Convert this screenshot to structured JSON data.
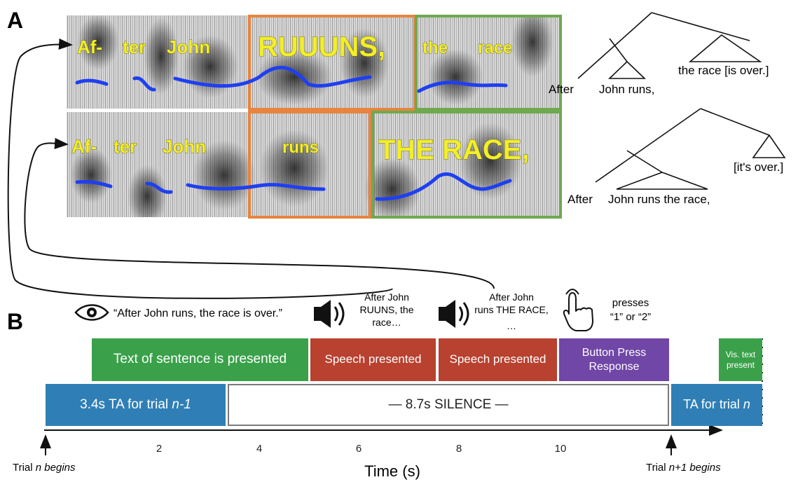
{
  "panel_a": {
    "label": "A",
    "row1": {
      "words": [
        "Af-",
        "ter",
        "John",
        "RUUUNS,",
        "the",
        "race"
      ],
      "tree_labels": [
        "After",
        "John runs,",
        "the race [is over.]"
      ]
    },
    "row2": {
      "words": [
        "Af-",
        "ter",
        "John",
        "runs",
        "THE RACE,"
      ],
      "tree_labels": [
        "After",
        "John runs the race,",
        "[it's over.]"
      ]
    },
    "colors": {
      "orange": "#e8843f",
      "green": "#6fa94f",
      "pitch": "#1f3ff0",
      "word": "#f2ee2a"
    }
  },
  "panel_b": {
    "label": "B",
    "cues": {
      "visual_sentence": "“After John runs, the race is over.”",
      "speech1": [
        "After John",
        "RUUNS, the",
        "race…"
      ],
      "speech2": [
        "After John",
        "runs THE RACE,",
        "…"
      ],
      "press": [
        "presses",
        "“1” or “2”"
      ]
    },
    "bars": {
      "text_presented": "Text of sentence is presented",
      "speech1": "Speech presented",
      "speech2": "Speech presented",
      "button": [
        "Button Press",
        "Response"
      ],
      "vis_text": [
        "Vis. text",
        "present"
      ],
      "ta_prev": [
        "3.4s TA for trial ",
        "n-1"
      ],
      "silence": "— 8.7s SILENCE —",
      "ta_next": [
        "TA for trial ",
        "n"
      ]
    },
    "axis": {
      "ticks": [
        "2",
        "4",
        "6",
        "8",
        "10"
      ],
      "label": "Time (s)",
      "trial_start": [
        "Trial ",
        "n begins"
      ],
      "trial_next": [
        "Trial ",
        "n+1 begins"
      ]
    },
    "colors": {
      "green": "#3aa14a",
      "red": "#b8412f",
      "purple": "#7046a6",
      "blue": "#2f7fb6",
      "grey_border": "#7a7a7a"
    }
  }
}
